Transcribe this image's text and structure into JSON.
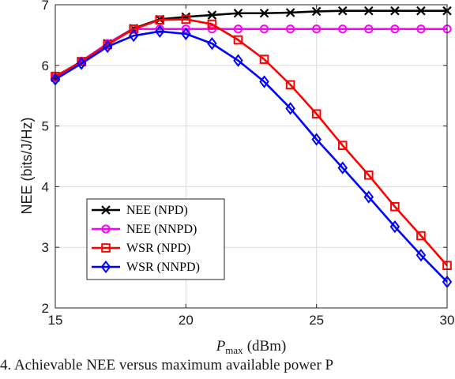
{
  "chart_data": {
    "type": "line",
    "x": [
      15,
      16,
      17,
      18,
      19,
      20,
      21,
      22,
      23,
      24,
      25,
      26,
      27,
      28,
      29,
      30
    ],
    "series": [
      {
        "name": "NEE (NPD)",
        "color": "#000000",
        "marker": "x",
        "values": [
          5.8,
          6.07,
          6.36,
          6.61,
          6.76,
          6.8,
          6.83,
          6.86,
          6.86,
          6.87,
          6.89,
          6.9,
          6.9,
          6.9,
          6.9,
          6.9
        ]
      },
      {
        "name": "NEE (NNPD)",
        "color": "#ff00ff",
        "marker": "circle",
        "values": [
          5.8,
          6.07,
          6.36,
          6.6,
          6.6,
          6.6,
          6.6,
          6.6,
          6.6,
          6.6,
          6.6,
          6.6,
          6.6,
          6.6,
          6.6,
          6.6
        ]
      },
      {
        "name": "WSR (NPD)",
        "color": "#ff0000",
        "marker": "square",
        "values": [
          5.82,
          6.06,
          6.34,
          6.6,
          6.75,
          6.76,
          6.68,
          6.42,
          6.1,
          5.68,
          5.2,
          4.68,
          4.19,
          3.67,
          3.19,
          2.7
        ]
      },
      {
        "name": "WSR (NNPD)",
        "color": "#0000ff",
        "marker": "diamond",
        "values": [
          5.77,
          6.03,
          6.31,
          6.49,
          6.56,
          6.52,
          6.36,
          6.08,
          5.73,
          5.29,
          4.78,
          4.31,
          3.83,
          3.34,
          2.87,
          2.43
        ]
      }
    ],
    "xlim": [
      15,
      30
    ],
    "ylim": [
      2,
      7
    ],
    "xticks": [
      "15",
      "20",
      "25",
      "30"
    ],
    "yticks": [
      "2",
      "3",
      "4",
      "5",
      "6",
      "7"
    ],
    "xlabel_main": "P",
    "xlabel_sub": "max",
    "xlabel_unit": "(dBm)",
    "ylabel": "NEE (bits/J/Hz)",
    "grid": true,
    "legend_position": "bottom-left"
  },
  "caption": "4. Achievable NEE versus maximum available power P"
}
